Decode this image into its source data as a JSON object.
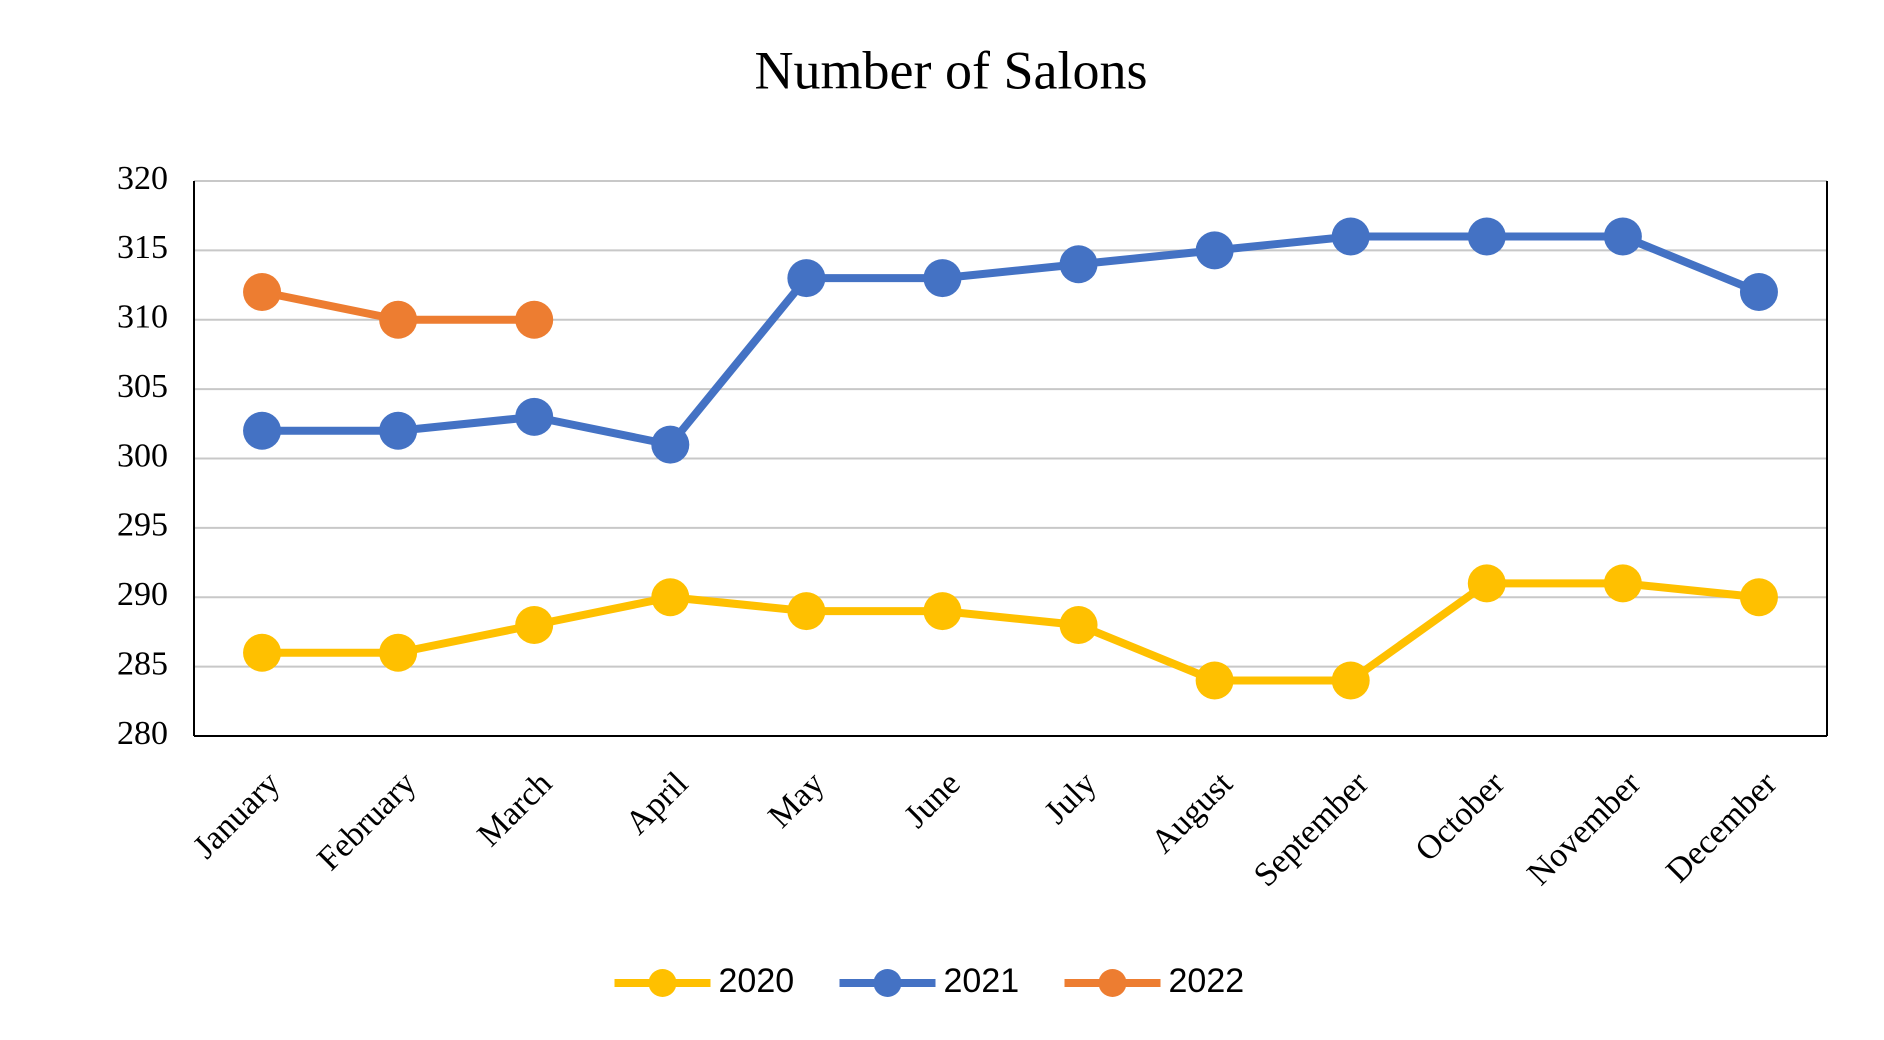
{
  "chart_data": {
    "type": "line",
    "title": "Number of Salons",
    "categories": [
      "January",
      "February",
      "March",
      "April",
      "May",
      "June",
      "July",
      "August",
      "September",
      "October",
      "November",
      "December"
    ],
    "series": [
      {
        "name": "2020",
        "color": "#FFC000",
        "values": [
          286,
          286,
          288,
          290,
          289,
          289,
          288,
          284,
          284,
          291,
          291,
          290
        ]
      },
      {
        "name": "2021",
        "color": "#4472C4",
        "values": [
          302,
          302,
          303,
          301,
          313,
          313,
          314,
          315,
          316,
          316,
          316,
          312
        ]
      },
      {
        "name": "2022",
        "color": "#ED7D31",
        "values": [
          312,
          310,
          310,
          null,
          null,
          null,
          null,
          null,
          null,
          null,
          null,
          null
        ]
      }
    ],
    "ylim": [
      280,
      320
    ],
    "yticks": [
      280,
      285,
      290,
      295,
      300,
      305,
      310,
      315,
      320
    ],
    "grid": true,
    "legend": "bottom"
  }
}
